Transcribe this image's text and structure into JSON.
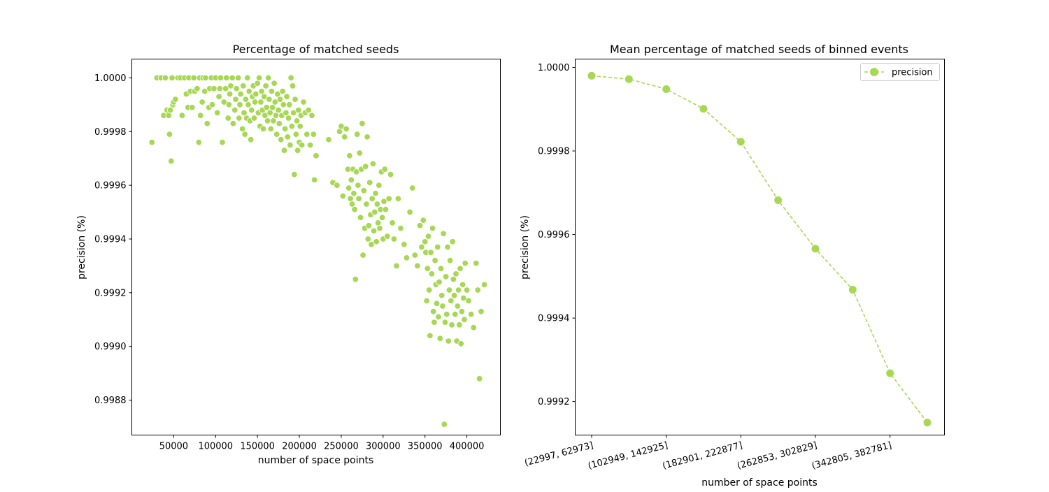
{
  "chart_data": [
    {
      "type": "scatter",
      "title": "Percentage of matched seeds",
      "xlabel": "number of space points",
      "ylabel": "precision (%)",
      "xlim": [
        0,
        440000
      ],
      "ylim": [
        0.99867,
        1.00007
      ],
      "xticks": [
        50000,
        100000,
        150000,
        200000,
        250000,
        300000,
        350000,
        400000
      ],
      "xtick_labels": [
        "50000",
        "100000",
        "150000",
        "200000",
        "250000",
        "300000",
        "350000",
        "400000"
      ],
      "yticks": [
        0.9988,
        0.999,
        0.9992,
        0.9994,
        0.9996,
        0.9998,
        1.0
      ],
      "ytick_labels": [
        "0.9988",
        "0.9990",
        "0.9992",
        "0.9994",
        "0.9996",
        "0.9998",
        "1.0000"
      ],
      "grid": false,
      "color": "#a6d854",
      "points": [
        [
          24000,
          0.99976
        ],
        [
          30000,
          1.0
        ],
        [
          35000,
          1.0
        ],
        [
          38000,
          0.99986
        ],
        [
          40000,
          1.0
        ],
        [
          42000,
          0.99988
        ],
        [
          44000,
          0.99986
        ],
        [
          45000,
          0.99979
        ],
        [
          46000,
          0.99988
        ],
        [
          47000,
          0.99969
        ],
        [
          48000,
          1.0
        ],
        [
          49000,
          0.9999
        ],
        [
          50000,
          0.99991
        ],
        [
          52000,
          0.99992
        ],
        [
          55000,
          1.0
        ],
        [
          58000,
          1.0
        ],
        [
          60000,
          0.99986
        ],
        [
          63000,
          1.0
        ],
        [
          65000,
          0.99994
        ],
        [
          67000,
          0.99989
        ],
        [
          68000,
          1.0
        ],
        [
          70000,
          0.99995
        ],
        [
          72000,
          0.99989
        ],
        [
          74000,
          1.0
        ],
        [
          75000,
          0.99995
        ],
        [
          78000,
          0.99996
        ],
        [
          80000,
          0.99976
        ],
        [
          81000,
          1.0
        ],
        [
          82000,
          0.99986
        ],
        [
          84000,
          0.99991
        ],
        [
          85000,
          1.0
        ],
        [
          87000,
          0.99995
        ],
        [
          88000,
          1.0
        ],
        [
          90000,
          0.99983
        ],
        [
          92000,
          0.99989
        ],
        [
          93000,
          0.99996
        ],
        [
          95000,
          1.0
        ],
        [
          96000,
          0.9999
        ],
        [
          98000,
          0.99996
        ],
        [
          100000,
          1.0
        ],
        [
          102000,
          0.99987
        ],
        [
          104000,
          0.99993
        ],
        [
          105000,
          0.99996
        ],
        [
          106000,
          1.0
        ],
        [
          108000,
          0.99976
        ],
        [
          110000,
          0.99991
        ],
        [
          112000,
          0.99996
        ],
        [
          113000,
          1.0
        ],
        [
          115000,
          0.99985
        ],
        [
          116000,
          0.9999
        ],
        [
          117000,
          0.99994
        ],
        [
          118000,
          0.99997
        ],
        [
          120000,
          1.0
        ],
        [
          121000,
          0.99983
        ],
        [
          123000,
          0.99988
        ],
        [
          124000,
          0.99992
        ],
        [
          125000,
          0.99996
        ],
        [
          127000,
          1.0
        ],
        [
          128000,
          0.99985
        ],
        [
          129000,
          0.9999
        ],
        [
          130000,
          0.99994
        ],
        [
          132000,
          0.99981
        ],
        [
          133000,
          0.99997
        ],
        [
          134000,
          0.99987
        ],
        [
          135000,
          0.99979
        ],
        [
          136000,
          0.99992
        ],
        [
          137000,
          0.99985
        ],
        [
          138000,
          1.0
        ],
        [
          139000,
          0.9999
        ],
        [
          140000,
          0.99995
        ],
        [
          141000,
          0.99984
        ],
        [
          142000,
          0.99977
        ],
        [
          143000,
          0.99988
        ],
        [
          144000,
          0.99993
        ],
        [
          145000,
          0.99997
        ],
        [
          146000,
          0.99985
        ],
        [
          147000,
          0.99991
        ],
        [
          148000,
          0.99994
        ],
        [
          150000,
          0.99998
        ],
        [
          151000,
          0.99987
        ],
        [
          152000,
          1.0
        ],
        [
          153000,
          0.99982
        ],
        [
          154000,
          0.99991
        ],
        [
          155000,
          0.99995
        ],
        [
          156000,
          0.99988
        ],
        [
          157000,
          0.99981
        ],
        [
          158000,
          0.99993
        ],
        [
          159000,
          0.99986
        ],
        [
          160000,
          0.99997
        ],
        [
          161000,
          0.99989
        ],
        [
          162000,
          0.99984
        ],
        [
          163000,
          1.0
        ],
        [
          164000,
          0.99992
        ],
        [
          165000,
          0.99987
        ],
        [
          166000,
          0.99981
        ],
        [
          167000,
          0.99995
        ],
        [
          168000,
          0.99989
        ],
        [
          169000,
          0.99984
        ],
        [
          170000,
          0.99998
        ],
        [
          171000,
          0.99991
        ],
        [
          172000,
          0.99986
        ],
        [
          173000,
          0.99979
        ],
        [
          174000,
          0.99994
        ],
        [
          175000,
          0.99988
        ],
        [
          176000,
          0.99983
        ],
        [
          177000,
          0.99992
        ],
        [
          178000,
          0.99977
        ],
        [
          179000,
          0.99986
        ],
        [
          180000,
          0.99995
        ],
        [
          181000,
          0.9999
        ],
        [
          182000,
          0.99973
        ],
        [
          183000,
          0.99981
        ],
        [
          184000,
          0.99987
        ],
        [
          185000,
          0.99993
        ],
        [
          186000,
          0.99978
        ],
        [
          187000,
          0.99985
        ],
        [
          188000,
          0.9999
        ],
        [
          189000,
          0.99975
        ],
        [
          190000,
          1.0
        ],
        [
          191000,
          0.99982
        ],
        [
          192000,
          0.99997
        ],
        [
          193000,
          0.99987
        ],
        [
          194000,
          0.99964
        ],
        [
          195000,
          0.99992
        ],
        [
          196000,
          0.99979
        ],
        [
          197000,
          0.99984
        ],
        [
          198000,
          0.99973
        ],
        [
          199000,
          0.99988
        ],
        [
          200000,
          0.99976
        ],
        [
          201000,
          0.99982
        ],
        [
          202000,
          0.99986
        ],
        [
          203000,
          0.99975
        ],
        [
          205000,
          0.99991
        ],
        [
          207000,
          0.99987
        ],
        [
          209000,
          0.99979
        ],
        [
          211000,
          0.99988
        ],
        [
          213000,
          0.99975
        ],
        [
          215000,
          0.99986
        ],
        [
          217000,
          0.99979
        ],
        [
          218000,
          0.99962
        ],
        [
          220000,
          0.99971
        ],
        [
          235000,
          0.99977
        ],
        [
          240000,
          0.99961
        ],
        [
          245000,
          0.9996
        ],
        [
          248000,
          0.9998
        ],
        [
          250000,
          0.99982
        ],
        [
          252000,
          0.99956
        ],
        [
          254000,
          0.99978
        ],
        [
          256000,
          0.99981
        ],
        [
          258000,
          0.99966
        ],
        [
          259000,
          0.99959
        ],
        [
          260000,
          0.99971
        ],
        [
          261000,
          0.99955
        ],
        [
          262000,
          0.99962
        ],
        [
          263000,
          0.99953
        ],
        [
          264000,
          0.99966
        ],
        [
          265000,
          0.99957
        ],
        [
          266000,
          0.99951
        ],
        [
          267000,
          0.99925
        ],
        [
          268000,
          0.99965
        ],
        [
          269000,
          0.99979
        ],
        [
          270000,
          0.9996
        ],
        [
          271000,
          0.99955
        ],
        [
          272000,
          0.99972
        ],
        [
          273000,
          0.99948
        ],
        [
          274000,
          0.99966
        ],
        [
          275000,
          0.99983
        ],
        [
          276000,
          0.99934
        ],
        [
          277000,
          0.99958
        ],
        [
          278000,
          0.99944
        ],
        [
          279000,
          0.99967
        ],
        [
          280000,
          0.99953
        ],
        [
          281000,
          0.99978
        ],
        [
          282000,
          0.9994
        ],
        [
          283000,
          0.99945
        ],
        [
          284000,
          0.99961
        ],
        [
          285000,
          0.99949
        ],
        [
          286000,
          0.99938
        ],
        [
          287000,
          0.99955
        ],
        [
          288000,
          0.99968
        ],
        [
          289000,
          0.99943
        ],
        [
          290000,
          0.9995
        ],
        [
          291000,
          0.99957
        ],
        [
          292000,
          0.99939
        ],
        [
          293000,
          0.99953
        ],
        [
          294000,
          0.99946
        ],
        [
          295000,
          0.9996
        ],
        [
          296000,
          0.99944
        ],
        [
          297000,
          0.99951
        ],
        [
          298000,
          0.99965
        ],
        [
          299000,
          0.99948
        ],
        [
          300000,
          0.9994
        ],
        [
          301000,
          0.99954
        ],
        [
          302000,
          0.99966
        ],
        [
          303000,
          0.99951
        ],
        [
          305000,
          0.99941
        ],
        [
          307000,
          0.99955
        ],
        [
          309000,
          0.99964
        ],
        [
          311000,
          0.99946
        ],
        [
          313000,
          0.9994
        ],
        [
          316000,
          0.9993
        ],
        [
          318000,
          0.99955
        ],
        [
          321000,
          0.99944
        ],
        [
          325000,
          0.99938
        ],
        [
          328000,
          0.99933
        ],
        [
          332000,
          0.9995
        ],
        [
          335000,
          0.99959
        ],
        [
          338000,
          0.99934
        ],
        [
          341000,
          0.9993
        ],
        [
          344000,
          0.99945
        ],
        [
          346000,
          0.99937
        ],
        [
          348000,
          0.99947
        ],
        [
          350000,
          0.99939
        ],
        [
          351000,
          0.99935
        ],
        [
          352000,
          0.99917
        ],
        [
          353000,
          0.99929
        ],
        [
          354000,
          0.99941
        ],
        [
          355000,
          0.99921
        ],
        [
          356000,
          0.99904
        ],
        [
          357000,
          0.99935
        ],
        [
          358000,
          0.99927
        ],
        [
          359000,
          0.99944
        ],
        [
          360000,
          0.99913
        ],
        [
          361000,
          0.99909
        ],
        [
          362000,
          0.99932
        ],
        [
          363000,
          0.99923
        ],
        [
          364000,
          0.99916
        ],
        [
          365000,
          0.99937
        ],
        [
          366000,
          0.99911
        ],
        [
          367000,
          0.99924
        ],
        [
          368000,
          0.99903
        ],
        [
          369000,
          0.99929
        ],
        [
          370000,
          0.99919
        ],
        [
          371000,
          0.99915
        ],
        [
          372000,
          0.99942
        ],
        [
          373000,
          0.99871
        ],
        [
          374000,
          0.99909
        ],
        [
          375000,
          0.99926
        ],
        [
          376000,
          0.99912
        ],
        [
          377000,
          0.99937
        ],
        [
          378000,
          0.99902
        ],
        [
          379000,
          0.99921
        ],
        [
          380000,
          0.99932
        ],
        [
          381000,
          0.99917
        ],
        [
          382000,
          0.99908
        ],
        [
          383000,
          0.99939
        ],
        [
          384000,
          0.99925
        ],
        [
          385000,
          0.99919
        ],
        [
          386000,
          0.99912
        ],
        [
          387000,
          0.99927
        ],
        [
          388000,
          0.99902
        ],
        [
          389000,
          0.99915
        ],
        [
          390000,
          0.99921
        ],
        [
          391000,
          0.99908
        ],
        [
          392000,
          0.99929
        ],
        [
          393000,
          0.99901
        ],
        [
          394000,
          0.99913
        ],
        [
          395000,
          0.99923
        ],
        [
          396000,
          0.99918
        ],
        [
          397000,
          0.9991
        ],
        [
          398000,
          0.99931
        ],
        [
          400000,
          0.99921
        ],
        [
          402000,
          0.99917
        ],
        [
          405000,
          0.99912
        ],
        [
          408000,
          0.99907
        ],
        [
          411000,
          0.99931
        ],
        [
          413000,
          0.99921
        ],
        [
          415000,
          0.99888
        ],
        [
          417000,
          0.99913
        ],
        [
          421000,
          0.99923
        ]
      ]
    },
    {
      "type": "line",
      "title": "Mean percentage of matched seeds of binned events",
      "xlabel": "number of space points",
      "ylabel": "precision (%)",
      "ylim": [
        0.99912,
        1.00002
      ],
      "yticks": [
        0.9992,
        0.9994,
        0.9996,
        0.9998,
        1.0
      ],
      "ytick_labels": [
        "0.9992",
        "0.9994",
        "0.9996",
        "0.9998",
        "1.0000"
      ],
      "xtick_labels": [
        "(22997, 62973]",
        "(102949, 142925]",
        "(182901, 222877]",
        "(262853, 302829]",
        "(342805, 382781]"
      ],
      "grid": false,
      "legend_position": "top-right",
      "color": "#a6d854",
      "series": [
        {
          "name": "precision",
          "values": [
            0.99998,
            0.999972,
            0.999948,
            0.999901,
            0.999822,
            0.999682,
            0.999566,
            0.999468,
            0.999268,
            0.99915
          ]
        }
      ]
    }
  ]
}
